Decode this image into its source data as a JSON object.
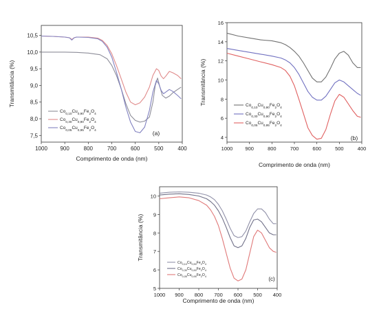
{
  "chart_data": [
    {
      "type": "line",
      "panel_label": "(a)",
      "xlabel": "Comprimento de onda (nm)",
      "ylabel": "Transmitância (%)",
      "xlim": [
        1000,
        400
      ],
      "ylim": [
        7.3,
        10.8
      ],
      "xticks": [
        1000,
        900,
        800,
        700,
        600,
        500,
        400
      ],
      "yticks": [
        7.5,
        8.0,
        8.5,
        9.0,
        9.5,
        10.0,
        10.5
      ],
      "ytick_labels": [
        "7,5",
        "8,0",
        "8,5",
        "9,0",
        "9,5",
        "10,0",
        "10,5"
      ],
      "grid": false,
      "legend": "bottom-left",
      "series": [
        {
          "name": "Co0,10Cu0,90Fe2O4",
          "legend_parts": [
            [
              "Co",
              ""
            ],
            [
              "0,10",
              "sub"
            ],
            [
              "Cu",
              ""
            ],
            [
              "0,90",
              "sub"
            ],
            [
              "Fe",
              ""
            ],
            [
              "2",
              "sub"
            ],
            [
              "O",
              ""
            ],
            [
              "4",
              "sub"
            ]
          ],
          "color": "#8c8c98",
          "x": [
            1000,
            950,
            900,
            850,
            800,
            750,
            720,
            700,
            680,
            660,
            640,
            620,
            600,
            580,
            560,
            540,
            525,
            515,
            505,
            495,
            485,
            470,
            455,
            440,
            420,
            405
          ],
          "y": [
            10.0,
            10.0,
            10.0,
            9.99,
            9.97,
            9.92,
            9.8,
            9.6,
            9.3,
            8.9,
            8.45,
            8.1,
            7.95,
            7.9,
            7.93,
            8.05,
            8.5,
            9.0,
            9.22,
            8.95,
            8.7,
            8.62,
            8.68,
            8.78,
            8.88,
            8.95
          ]
        },
        {
          "name": "Co0,30Cu0,90Fe2O4",
          "legend_parts": [
            [
              "Co",
              ""
            ],
            [
              "0,30",
              "sub"
            ],
            [
              "Cu",
              ""
            ],
            [
              "0,90",
              "sub"
            ],
            [
              "Fe",
              ""
            ],
            [
              "2",
              "sub"
            ],
            [
              "O",
              ""
            ],
            [
              "4",
              "sub"
            ]
          ],
          "color": "#e08a8a",
          "x": [
            1000,
            950,
            900,
            880,
            870,
            860,
            850,
            800,
            760,
            740,
            720,
            700,
            680,
            660,
            640,
            620,
            600,
            580,
            560,
            540,
            525,
            510,
            500,
            490,
            480,
            470,
            455,
            440,
            420,
            405
          ],
          "y": [
            10.48,
            10.47,
            10.45,
            10.43,
            10.38,
            10.43,
            10.45,
            10.45,
            10.42,
            10.35,
            10.2,
            9.95,
            9.6,
            9.2,
            8.8,
            8.5,
            8.42,
            8.48,
            8.65,
            8.95,
            9.3,
            9.5,
            9.45,
            9.28,
            9.2,
            9.28,
            9.42,
            9.38,
            9.3,
            9.2
          ]
        },
        {
          "name": "Co0,05Cu0,95Fe2O4",
          "legend_parts": [
            [
              "Co",
              ""
            ],
            [
              "0,05",
              "sub"
            ],
            [
              "Cu",
              ""
            ],
            [
              "0,95",
              "sub"
            ],
            [
              "Fe",
              ""
            ],
            [
              "2",
              "sub"
            ],
            [
              "O",
              ""
            ],
            [
              "4",
              "sub"
            ]
          ],
          "color": "#8080c0",
          "x": [
            1000,
            950,
            900,
            880,
            870,
            860,
            850,
            800,
            760,
            740,
            720,
            700,
            680,
            660,
            640,
            620,
            600,
            580,
            560,
            540,
            525,
            510,
            500,
            490,
            480,
            470,
            455,
            440,
            420,
            405
          ],
          "y": [
            10.48,
            10.47,
            10.45,
            10.43,
            10.36,
            10.43,
            10.45,
            10.44,
            10.4,
            10.32,
            10.15,
            9.85,
            9.4,
            8.9,
            8.35,
            7.9,
            7.62,
            7.58,
            7.75,
            8.25,
            8.8,
            9.15,
            9.05,
            8.85,
            8.75,
            8.8,
            8.88,
            8.82,
            8.7,
            8.6
          ]
        }
      ]
    },
    {
      "type": "line",
      "panel_label": "(b)",
      "xlabel": "Comprimento de onda (nm)",
      "ylabel": "Transmitância (%)",
      "xlim": [
        1000,
        400
      ],
      "ylim": [
        3.5,
        16
      ],
      "xticks": [
        1000,
        900,
        800,
        700,
        600,
        500,
        400
      ],
      "yticks": [
        4,
        6,
        8,
        10,
        12,
        14,
        16
      ],
      "ytick_labels": [
        "4",
        "6",
        "8",
        "10",
        "12",
        "14",
        "16"
      ],
      "grid": false,
      "legend": "bottom-left",
      "series": [
        {
          "name": "Co0,10Cu0,90Fe2O4",
          "legend_parts": [
            [
              "Co",
              ""
            ],
            [
              "0,10",
              "sub"
            ],
            [
              "Cu",
              ""
            ],
            [
              "0,90",
              "sub"
            ],
            [
              "Fe",
              ""
            ],
            [
              "2",
              "sub"
            ],
            [
              "O",
              ""
            ],
            [
              "4",
              "sub"
            ]
          ],
          "color": "#707070",
          "x": [
            1000,
            950,
            900,
            850,
            800,
            760,
            740,
            720,
            700,
            680,
            660,
            640,
            620,
            600,
            580,
            560,
            540,
            520,
            500,
            480,
            460,
            440,
            420,
            405
          ],
          "y": [
            14.9,
            14.6,
            14.4,
            14.2,
            14.1,
            13.9,
            13.7,
            13.4,
            13.0,
            12.5,
            11.8,
            11.0,
            10.2,
            9.8,
            9.8,
            10.3,
            11.2,
            12.2,
            12.8,
            13.0,
            12.6,
            11.8,
            11.3,
            11.3
          ]
        },
        {
          "name": "Co0,30Cu0,90Fe2O4",
          "legend_parts": [
            [
              "Co",
              ""
            ],
            [
              "0,30",
              "sub"
            ],
            [
              "Cu",
              ""
            ],
            [
              "0,90",
              "sub"
            ],
            [
              "Fe",
              ""
            ],
            [
              "2",
              "sub"
            ],
            [
              "O",
              ""
            ],
            [
              "4",
              "sub"
            ]
          ],
          "color": "#7070c0",
          "x": [
            1000,
            950,
            900,
            850,
            800,
            760,
            740,
            720,
            700,
            680,
            660,
            640,
            620,
            600,
            580,
            560,
            540,
            520,
            500,
            480,
            460,
            440,
            420,
            405
          ],
          "y": [
            13.3,
            13.1,
            12.9,
            12.7,
            12.5,
            12.3,
            12.1,
            11.8,
            11.3,
            10.6,
            9.7,
            8.8,
            8.2,
            7.9,
            7.9,
            8.3,
            9.0,
            9.7,
            10.0,
            9.8,
            9.4,
            9.0,
            8.6,
            8.4
          ]
        },
        {
          "name": "Co0,05Cu0,95Fe2O4",
          "legend_parts": [
            [
              "Co",
              ""
            ],
            [
              "0,05",
              "sub"
            ],
            [
              "Cu",
              ""
            ],
            [
              "0,95",
              "sub"
            ],
            [
              "Fe",
              ""
            ],
            [
              "2",
              "sub"
            ],
            [
              "O",
              ""
            ],
            [
              "4",
              "sub"
            ]
          ],
          "color": "#e06060",
          "x": [
            1000,
            950,
            900,
            850,
            800,
            760,
            740,
            720,
            700,
            680,
            660,
            640,
            620,
            600,
            580,
            560,
            540,
            520,
            500,
            480,
            460,
            440,
            420,
            405
          ],
          "y": [
            12.8,
            12.5,
            12.2,
            11.9,
            11.6,
            11.3,
            11.0,
            10.4,
            9.4,
            8.0,
            6.5,
            5.0,
            4.2,
            3.8,
            3.9,
            4.8,
            6.4,
            7.8,
            8.5,
            8.2,
            7.5,
            6.8,
            6.2,
            6.1
          ]
        }
      ]
    },
    {
      "type": "line",
      "panel_label": "(c)",
      "xlabel": "Comprimento de onda (nm)",
      "ylabel": "Transmitância (%)",
      "xlim": [
        1000,
        400
      ],
      "ylim": [
        5,
        10.5
      ],
      "xticks": [
        1000,
        900,
        800,
        700,
        600,
        500,
        400
      ],
      "yticks": [
        5,
        6,
        7,
        8,
        9,
        10
      ],
      "ytick_labels": [
        "5",
        "6",
        "7",
        "8",
        "9",
        "10"
      ],
      "grid": false,
      "legend": "bottom-left",
      "series": [
        {
          "name": "Co0,10Cu0,90Fe2O4",
          "legend_parts": [
            [
              "Co",
              ""
            ],
            [
              "0,10",
              "sub"
            ],
            [
              "Cu",
              ""
            ],
            [
              "0,90",
              "sub"
            ],
            [
              "Fe",
              ""
            ],
            [
              "2",
              "sub"
            ],
            [
              "O",
              ""
            ],
            [
              "4",
              "sub"
            ]
          ],
          "color": "#9090a8",
          "x": [
            1000,
            950,
            900,
            850,
            800,
            760,
            740,
            720,
            700,
            680,
            660,
            640,
            620,
            600,
            580,
            560,
            540,
            520,
            500,
            480,
            460,
            440,
            420,
            405
          ],
          "y": [
            10.15,
            10.2,
            10.22,
            10.2,
            10.15,
            10.05,
            9.95,
            9.8,
            9.55,
            9.2,
            8.75,
            8.25,
            7.85,
            7.75,
            7.8,
            8.1,
            8.6,
            9.05,
            9.3,
            9.3,
            9.1,
            8.75,
            8.5,
            8.5
          ]
        },
        {
          "name": "Co0,30Cu0,90Fe2O4",
          "legend_parts": [
            [
              "Co",
              ""
            ],
            [
              "0,30",
              "sub"
            ],
            [
              "Cu",
              ""
            ],
            [
              "0,90",
              "sub"
            ],
            [
              "Fe",
              ""
            ],
            [
              "2",
              "sub"
            ],
            [
              "O",
              ""
            ],
            [
              "4",
              "sub"
            ]
          ],
          "color": "#707088",
          "x": [
            1000,
            950,
            900,
            850,
            800,
            760,
            740,
            720,
            700,
            680,
            660,
            640,
            620,
            600,
            580,
            560,
            540,
            520,
            500,
            480,
            460,
            440,
            420,
            405
          ],
          "y": [
            10.05,
            10.1,
            10.12,
            10.08,
            10.0,
            9.85,
            9.7,
            9.5,
            9.2,
            8.8,
            8.3,
            7.75,
            7.3,
            7.2,
            7.3,
            7.7,
            8.3,
            8.7,
            8.75,
            8.6,
            8.3,
            8.0,
            7.9,
            7.9
          ]
        },
        {
          "name": "Co0,05Cu0,95Fe2O4",
          "legend_parts": [
            [
              "Co",
              ""
            ],
            [
              "0,05",
              "sub"
            ],
            [
              "Cu",
              ""
            ],
            [
              "0,95",
              "sub"
            ],
            [
              "Fe",
              ""
            ],
            [
              "2",
              "sub"
            ],
            [
              "O",
              ""
            ],
            [
              "4",
              "sub"
            ]
          ],
          "color": "#e07878",
          "x": [
            1000,
            950,
            900,
            850,
            800,
            760,
            740,
            720,
            700,
            680,
            660,
            640,
            620,
            600,
            580,
            560,
            540,
            520,
            500,
            480,
            460,
            440,
            420,
            405
          ],
          "y": [
            9.85,
            9.9,
            9.95,
            9.9,
            9.75,
            9.5,
            9.25,
            8.9,
            8.4,
            7.7,
            6.9,
            6.1,
            5.55,
            5.4,
            5.5,
            6.0,
            6.9,
            7.8,
            8.15,
            8.0,
            7.6,
            7.2,
            7.0,
            6.95
          ]
        }
      ]
    }
  ]
}
